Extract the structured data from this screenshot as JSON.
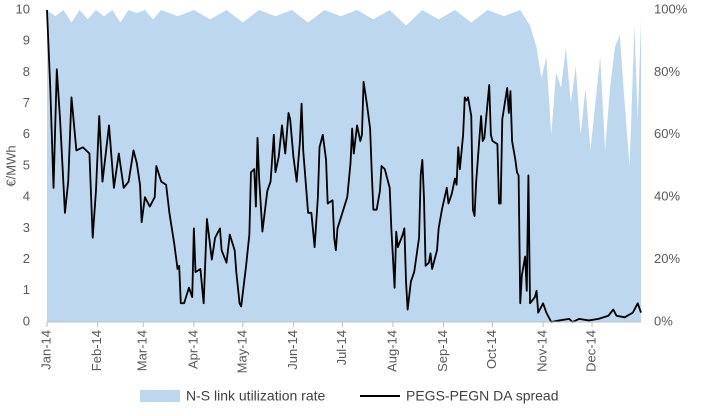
{
  "chart_data": {
    "type": "area-line",
    "y_label": "€/MWh",
    "xlim": [
      0,
      364
    ],
    "xticks": [
      {
        "value": 0,
        "label": "Jan-14"
      },
      {
        "value": 31,
        "label": "Feb-14"
      },
      {
        "value": 59,
        "label": "Mar-14"
      },
      {
        "value": 90,
        "label": "Apr-14"
      },
      {
        "value": 120,
        "label": "May-14"
      },
      {
        "value": 151,
        "label": "Jun-14"
      },
      {
        "value": 181,
        "label": "Jul-14"
      },
      {
        "value": 212,
        "label": "Aug-14"
      },
      {
        "value": 243,
        "label": "Sep-14"
      },
      {
        "value": 273,
        "label": "Oct-14"
      },
      {
        "value": 304,
        "label": "Nov-14"
      },
      {
        "value": 334,
        "label": "Dec-14"
      }
    ],
    "ylim": [
      0,
      10
    ],
    "yticks": [
      0,
      1,
      2,
      3,
      4,
      5,
      6,
      7,
      8,
      9,
      10
    ],
    "y2lim": [
      0,
      100
    ],
    "y2ticks": [
      {
        "value": 0,
        "label": "0%"
      },
      {
        "value": 20,
        "label": "20%"
      },
      {
        "value": 40,
        "label": "40%"
      },
      {
        "value": 60,
        "label": "60%"
      },
      {
        "value": 80,
        "label": "80%"
      },
      {
        "value": 100,
        "label": "100%"
      }
    ],
    "series": [
      {
        "name": "N-S link utilization rate",
        "kind": "area",
        "axis": "y2",
        "color": "#bdd7ee",
        "x": [
          0,
          5,
          10,
          15,
          20,
          25,
          30,
          35,
          40,
          45,
          50,
          55,
          60,
          65,
          70,
          80,
          90,
          100,
          110,
          120,
          130,
          140,
          150,
          160,
          170,
          180,
          190,
          200,
          210,
          220,
          230,
          240,
          250,
          260,
          270,
          280,
          290,
          296,
          300,
          303,
          306,
          309,
          312,
          315,
          318,
          321,
          324,
          327,
          330,
          333,
          336,
          339,
          342,
          345,
          348,
          351,
          354,
          357,
          360,
          362,
          364
        ],
        "values": [
          100,
          98,
          100,
          96,
          100,
          97,
          100,
          98,
          100,
          96,
          100,
          99,
          100,
          97,
          100,
          98,
          100,
          97,
          100,
          96,
          100,
          98,
          100,
          96,
          100,
          98,
          100,
          97,
          100,
          95,
          100,
          97,
          100,
          96,
          100,
          98,
          100,
          95,
          88,
          78,
          85,
          60,
          80,
          75,
          88,
          70,
          82,
          60,
          75,
          55,
          70,
          85,
          55,
          75,
          88,
          92,
          70,
          50,
          95,
          65,
          97
        ]
      },
      {
        "name": "PEGS-PEGN DA spread",
        "kind": "line",
        "color": "#000000",
        "x": [
          0,
          2,
          4,
          6,
          8,
          11,
          13,
          15,
          18,
          22,
          26,
          28,
          30,
          32,
          34,
          38,
          41,
          44,
          47,
          50,
          53,
          55,
          57,
          58,
          60,
          63,
          66,
          67,
          70,
          73,
          75,
          78,
          80,
          81,
          82,
          84,
          87,
          89,
          90,
          91,
          94,
          96,
          98,
          101,
          103,
          106,
          107,
          110,
          112,
          115,
          116,
          118,
          119,
          122,
          124,
          125,
          127,
          128,
          129,
          130,
          132,
          135,
          137,
          139,
          140,
          142,
          144,
          146,
          148,
          149,
          151,
          153,
          155,
          156,
          157,
          160,
          162,
          164,
          166,
          167,
          169,
          171,
          172,
          175,
          176,
          177,
          178,
          181,
          184,
          186,
          187,
          188,
          190,
          192,
          193,
          194,
          196,
          198,
          199,
          200,
          202,
          204,
          205,
          207,
          209,
          210,
          211,
          213,
          214,
          215,
          218,
          219,
          220,
          221,
          223,
          225,
          228,
          229,
          230,
          231,
          232,
          234,
          235,
          236,
          239,
          240,
          242,
          245,
          246,
          248,
          250,
          251,
          252,
          253,
          255,
          256,
          257,
          258,
          260,
          261,
          262,
          263,
          266,
          267,
          268,
          271,
          272,
          273,
          276,
          277,
          278,
          279,
          282,
          283,
          284,
          285,
          287,
          288,
          289,
          290,
          291,
          293,
          294,
          295,
          296,
          299,
          300,
          301,
          304,
          306,
          309,
          314,
          320,
          322,
          326,
          332,
          338,
          344,
          347,
          349,
          354,
          359,
          362,
          364
        ],
        "values": [
          10,
          7.5,
          4.3,
          8.1,
          6.5,
          3.5,
          4.5,
          7.2,
          5.5,
          5.6,
          5.4,
          2.7,
          4.2,
          6.6,
          4.5,
          6.3,
          4.3,
          5.4,
          4.3,
          4.5,
          5.5,
          5.1,
          4.4,
          3.2,
          4.0,
          3.7,
          4.0,
          5.0,
          4.5,
          4.4,
          3.5,
          2.5,
          1.7,
          1.8,
          0.6,
          0.6,
          1.1,
          0.8,
          3.0,
          1.6,
          1.7,
          0.6,
          3.3,
          2.0,
          2.7,
          3.0,
          2.3,
          1.9,
          2.8,
          2.3,
          1.6,
          0.6,
          0.5,
          1.8,
          2.8,
          4.8,
          4.9,
          3.7,
          5.9,
          4.6,
          2.9,
          4.2,
          4.5,
          6.0,
          4.8,
          5.3,
          6.3,
          5.4,
          6.7,
          6.5,
          5.3,
          4.5,
          5.8,
          7.0,
          5.5,
          3.5,
          3.5,
          2.4,
          4.0,
          5.6,
          6.0,
          5.2,
          3.8,
          3.9,
          2.7,
          2.3,
          3.0,
          3.5,
          4.0,
          5.1,
          6.2,
          5.4,
          6.3,
          5.8,
          6.0,
          7.7,
          7.0,
          6.2,
          4.8,
          3.6,
          3.6,
          4.2,
          5.0,
          4.9,
          4.5,
          4.3,
          3.0,
          1.1,
          2.9,
          2.4,
          2.8,
          3.0,
          1.3,
          0.4,
          1.3,
          1.6,
          2.7,
          4.7,
          5.2,
          4.0,
          1.8,
          1.9,
          2.2,
          1.7,
          2.3,
          3.0,
          3.6,
          4.3,
          3.8,
          4.1,
          4.6,
          4.4,
          5.6,
          4.9,
          6.0,
          7.2,
          7.1,
          7.2,
          6.6,
          3.6,
          3.4,
          4.5,
          6.6,
          5.8,
          5.9,
          7.6,
          6.0,
          5.8,
          5.7,
          3.8,
          3.8,
          6.5,
          7.5,
          6.7,
          7.4,
          5.8,
          5.2,
          4.8,
          4.7,
          0.6,
          1.5,
          2.1,
          1.0,
          4.7,
          0.6,
          0.8,
          1.0,
          0.3,
          0.6,
          0.3,
          0.0,
          0.05,
          0.1,
          0.0,
          0.1,
          0.05,
          0.1,
          0.2,
          0.4,
          0.2,
          0.15,
          0.3,
          0.6,
          0.3
        ]
      }
    ]
  }
}
